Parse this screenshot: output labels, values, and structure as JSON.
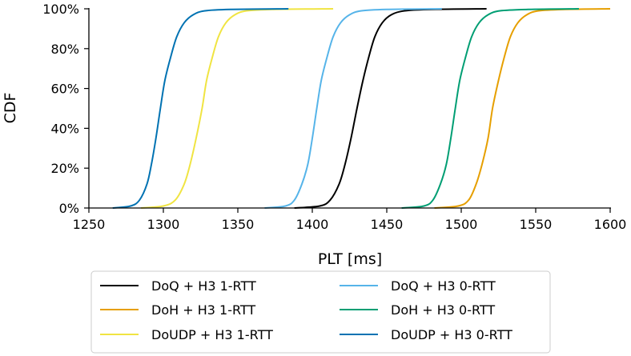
{
  "chart_data": {
    "type": "line",
    "title": "",
    "xlabel": "PLT [ms]",
    "ylabel": "CDF",
    "xlim": [
      1250,
      1600
    ],
    "ylim": [
      0,
      1
    ],
    "x_ticks": [
      "1250",
      "1300",
      "1350",
      "1400",
      "1450",
      "1500",
      "1550",
      "1600"
    ],
    "y_ticks": [
      "0%",
      "20%",
      "40%",
      "60%",
      "80%",
      "100%"
    ],
    "grid": false,
    "legend_position": "bottom-outside",
    "series": [
      {
        "name": "DoQ + H3 1-RTT",
        "color": "#000000",
        "points": [
          [
            1388,
            0
          ],
          [
            1405,
            0.01
          ],
          [
            1412,
            0.04
          ],
          [
            1418,
            0.12
          ],
          [
            1422,
            0.22
          ],
          [
            1426,
            0.35
          ],
          [
            1430,
            0.5
          ],
          [
            1434,
            0.64
          ],
          [
            1438,
            0.76
          ],
          [
            1442,
            0.86
          ],
          [
            1447,
            0.93
          ],
          [
            1453,
            0.97
          ],
          [
            1462,
            0.99
          ],
          [
            1480,
            0.997
          ],
          [
            1517,
            1.0
          ]
        ]
      },
      {
        "name": "DoH + H3 1-RTT",
        "color": "#E69F00",
        "points": [
          [
            1482,
            0
          ],
          [
            1498,
            0.01
          ],
          [
            1505,
            0.04
          ],
          [
            1510,
            0.12
          ],
          [
            1514,
            0.22
          ],
          [
            1518,
            0.35
          ],
          [
            1521,
            0.5
          ],
          [
            1525,
            0.64
          ],
          [
            1529,
            0.76
          ],
          [
            1533,
            0.86
          ],
          [
            1538,
            0.93
          ],
          [
            1544,
            0.97
          ],
          [
            1552,
            0.99
          ],
          [
            1570,
            0.997
          ],
          [
            1600,
            1.0
          ]
        ]
      },
      {
        "name": "DoUDP + H3 1-RTT",
        "color": "#F0E442",
        "points": [
          [
            1285,
            0
          ],
          [
            1300,
            0.01
          ],
          [
            1308,
            0.04
          ],
          [
            1314,
            0.12
          ],
          [
            1318,
            0.22
          ],
          [
            1322,
            0.35
          ],
          [
            1326,
            0.5
          ],
          [
            1329,
            0.64
          ],
          [
            1333,
            0.76
          ],
          [
            1337,
            0.86
          ],
          [
            1342,
            0.93
          ],
          [
            1348,
            0.97
          ],
          [
            1356,
            0.99
          ],
          [
            1375,
            0.997
          ],
          [
            1414,
            1.0
          ]
        ]
      },
      {
        "name": "DoQ + H3 0-RTT",
        "color": "#56B4E9",
        "points": [
          [
            1368,
            0
          ],
          [
            1382,
            0.01
          ],
          [
            1388,
            0.04
          ],
          [
            1393,
            0.12
          ],
          [
            1397,
            0.22
          ],
          [
            1400,
            0.35
          ],
          [
            1403,
            0.5
          ],
          [
            1406,
            0.64
          ],
          [
            1410,
            0.76
          ],
          [
            1414,
            0.86
          ],
          [
            1419,
            0.93
          ],
          [
            1425,
            0.97
          ],
          [
            1433,
            0.99
          ],
          [
            1450,
            0.997
          ],
          [
            1487,
            1.0
          ]
        ]
      },
      {
        "name": "DoH + H3 0-RTT",
        "color": "#009E73",
        "points": [
          [
            1460,
            0
          ],
          [
            1475,
            0.01
          ],
          [
            1481,
            0.04
          ],
          [
            1486,
            0.12
          ],
          [
            1490,
            0.22
          ],
          [
            1493,
            0.35
          ],
          [
            1496,
            0.5
          ],
          [
            1499,
            0.64
          ],
          [
            1503,
            0.76
          ],
          [
            1507,
            0.86
          ],
          [
            1512,
            0.93
          ],
          [
            1518,
            0.97
          ],
          [
            1526,
            0.99
          ],
          [
            1545,
            0.997
          ],
          [
            1579,
            1.0
          ]
        ]
      },
      {
        "name": "DoUDP + H3 0-RTT",
        "color": "#0072B2",
        "points": [
          [
            1266,
            0
          ],
          [
            1278,
            0.01
          ],
          [
            1284,
            0.04
          ],
          [
            1289,
            0.12
          ],
          [
            1292,
            0.22
          ],
          [
            1295,
            0.35
          ],
          [
            1298,
            0.5
          ],
          [
            1301,
            0.64
          ],
          [
            1305,
            0.76
          ],
          [
            1309,
            0.86
          ],
          [
            1314,
            0.93
          ],
          [
            1320,
            0.97
          ],
          [
            1328,
            0.99
          ],
          [
            1345,
            0.997
          ],
          [
            1384,
            1.0
          ]
        ]
      }
    ]
  }
}
